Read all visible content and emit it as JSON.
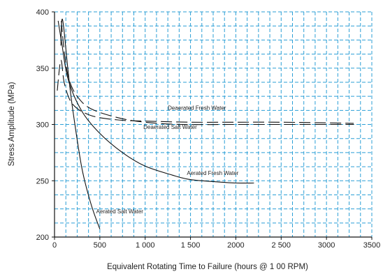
{
  "chart_data": {
    "type": "line",
    "title": "",
    "xlabel": "Equivalent Rotating Time to Failure (hours @ 1 00 RPM)",
    "ylabel": "Stress Amplitude (MPa)",
    "xlim": [
      0,
      3500
    ],
    "ylim": [
      200,
      400
    ],
    "x_ticks": [
      0,
      500,
      1000,
      1500,
      2000,
      2500,
      3000,
      3500
    ],
    "y_ticks": [
      200,
      250,
      300,
      350,
      400
    ],
    "x_tick_labels": [
      "0",
      "500",
      "1 000",
      "1 500",
      "2000",
      "2 500",
      "3000",
      "3500"
    ],
    "y_tick_labels": [
      "200",
      "250",
      "300",
      "350",
      "400"
    ],
    "grid": true,
    "grid_x_step": 125,
    "grid_y_step": 12.5,
    "colors": {
      "grid": "#2b9fd6",
      "axis": "#111111",
      "curve": "#111111"
    },
    "series": [
      {
        "name": "Deaerated Fresh Water",
        "style": "dashed",
        "points": [
          [
            30,
            330
          ],
          [
            70,
            357
          ],
          [
            110,
            336
          ],
          [
            200,
            318
          ],
          [
            400,
            308
          ],
          [
            700,
            304
          ],
          [
            1000,
            303
          ],
          [
            1500,
            302
          ],
          [
            2000,
            302
          ],
          [
            2500,
            302
          ],
          [
            3300,
            301
          ]
        ]
      },
      {
        "name": "Deaerated Salt Water",
        "style": "dashed",
        "points": [
          [
            75,
            392
          ],
          [
            110,
            363
          ],
          [
            160,
            340
          ],
          [
            250,
            325
          ],
          [
            400,
            314
          ],
          [
            700,
            306
          ],
          [
            1000,
            302
          ],
          [
            1400,
            300
          ],
          [
            2000,
            300
          ],
          [
            2500,
            300
          ],
          [
            3300,
            300
          ]
        ]
      },
      {
        "name": "Aerated Fresh Water",
        "style": "solid",
        "points": [
          [
            40,
            392
          ],
          [
            80,
            372
          ],
          [
            150,
            340
          ],
          [
            300,
            312
          ],
          [
            500,
            292
          ],
          [
            750,
            275
          ],
          [
            1000,
            263
          ],
          [
            1300,
            255
          ],
          [
            1500,
            251
          ],
          [
            1800,
            249
          ],
          [
            2000,
            248
          ],
          [
            2200,
            248
          ]
        ]
      },
      {
        "name": "Aerated Salt Water",
        "style": "solid",
        "points": [
          [
            70,
            370
          ],
          [
            80,
            392
          ],
          [
            100,
            387
          ],
          [
            150,
            347
          ],
          [
            200,
            314
          ],
          [
            300,
            262
          ],
          [
            400,
            230
          ],
          [
            500,
            207
          ]
        ]
      }
    ],
    "annotations": [
      {
        "text": "Deaerated Fresh Water",
        "x": 1250,
        "y": 313
      },
      {
        "text": "Deaerated Salt Water",
        "x": 980,
        "y": 296
      },
      {
        "text": "Aerated Fresh Water",
        "x": 1460,
        "y": 255
      },
      {
        "text": "Aerated Salt Water",
        "x": 460,
        "y": 221
      }
    ]
  }
}
